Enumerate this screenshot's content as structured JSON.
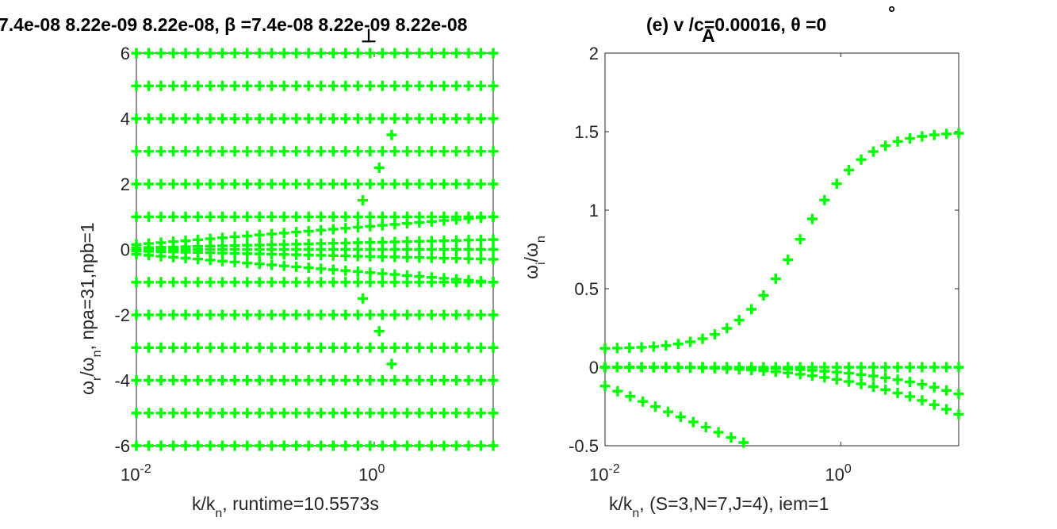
{
  "title": {
    "line": "7.4e-08   8.22e-09   8.22e-08, β  =7.4e-08   8.22e-09   8.22e-08",
    "beta_sub": "⊥",
    "overlay": "(e) v  /c=0.00016, θ =0",
    "v_sub": "A",
    "theta_sup": "°"
  },
  "chart_data": [
    {
      "type": "scatter",
      "xscale": "log",
      "xlim": [
        0.01,
        10
      ],
      "ylim": [
        -6,
        6
      ],
      "xticks": [
        {
          "v": 0.01,
          "base": "10",
          "exp": "-2"
        },
        {
          "v": 1,
          "base": "10",
          "exp": "0"
        }
      ],
      "yticks": [
        "-6",
        "-4",
        "-2",
        "0",
        "2",
        "4",
        "6"
      ],
      "xlabel": {
        "pre": "k/k",
        "sub": "n",
        "post": ", runtime=10.5573s"
      },
      "ylabel": {
        "w": "ω",
        "sub1": "r",
        "mid": "/ω",
        "sub2": "n",
        "post": ", npa=31,npb=1"
      },
      "color": "#00ff00",
      "series": [
        {
          "x_range": [
            0.01,
            10
          ],
          "count": 30,
          "y": 6
        },
        {
          "x_range": [
            0.01,
            10
          ],
          "count": 30,
          "y": 5
        },
        {
          "x_range": [
            0.01,
            10
          ],
          "count": 30,
          "y": 4
        },
        {
          "x_range": [
            0.01,
            10
          ],
          "count": 30,
          "y": 3
        },
        {
          "x_range": [
            0.01,
            10
          ],
          "count": 30,
          "y": 2
        },
        {
          "x_range": [
            0.01,
            10
          ],
          "count": 30,
          "y": 1
        },
        {
          "x_range": [
            0.01,
            10
          ],
          "count": 30,
          "y": 0
        },
        {
          "x_range": [
            0.01,
            10
          ],
          "count": 30,
          "y": -1
        },
        {
          "x_range": [
            0.01,
            10
          ],
          "count": 30,
          "y": -2
        },
        {
          "x_range": [
            0.01,
            10
          ],
          "count": 30,
          "y": -3
        },
        {
          "x_range": [
            0.01,
            10
          ],
          "count": 30,
          "y": -4
        },
        {
          "x_range": [
            0.01,
            10
          ],
          "count": 30,
          "y": -5
        },
        {
          "x_range": [
            0.01,
            10
          ],
          "count": 30,
          "y": -6
        },
        {
          "x_range": [
            0.01,
            10
          ],
          "count": 30,
          "y_start": 0.15,
          "y_end": 1.0
        },
        {
          "x_range": [
            0.01,
            10
          ],
          "count": 30,
          "y_start": -0.15,
          "y_end": -1.0
        },
        {
          "x_range": [
            0.01,
            10
          ],
          "count": 30,
          "y_start": 0.05,
          "y_end": 0.3
        },
        {
          "x_range": [
            0.01,
            10
          ],
          "count": 30,
          "y_start": -0.05,
          "y_end": -0.3
        },
        {
          "points": [
            [
              0.8,
              1.5
            ],
            [
              0.8,
              -1.5
            ],
            [
              1.1,
              2.5
            ],
            [
              1.1,
              -2.5
            ],
            [
              1.4,
              3.5
            ],
            [
              1.4,
              -3.5
            ]
          ]
        }
      ]
    },
    {
      "type": "scatter",
      "xscale": "log",
      "xlim": [
        0.01,
        10
      ],
      "ylim": [
        -0.5,
        2
      ],
      "xticks": [
        {
          "v": 0.01,
          "base": "10",
          "exp": "-2"
        },
        {
          "v": 1,
          "base": "10",
          "exp": "0"
        }
      ],
      "yticks": [
        "-0.5",
        "0",
        "0.5",
        "1",
        "1.5",
        "2"
      ],
      "xlabel": {
        "pre": "k/k",
        "sub": "n",
        "post": ", (S=3,N=7,J=4), iem=1"
      },
      "ylabel": {
        "w": "ω",
        "sub1": "i",
        "mid": "/ω",
        "sub2": "n",
        "post": ""
      },
      "color": "#00ff00",
      "series": [
        {
          "name_hidden": true,
          "x_range": [
            0.01,
            10
          ],
          "count": 30,
          "shape": "tanh",
          "y_start": 0.12,
          "y_end": 1.49
        },
        {
          "x_range": [
            0.01,
            10
          ],
          "count": 30,
          "y": 0
        },
        {
          "x_range": [
            0.01,
            10
          ],
          "count": 30,
          "shape": "drop",
          "y_start": 0,
          "y_end": -0.17
        },
        {
          "x_range": [
            0.01,
            10
          ],
          "count": 30,
          "shape": "drop2",
          "y_start": 0,
          "y_end": -0.3
        },
        {
          "x_range": [
            0.01,
            0.15
          ],
          "count": 12,
          "y_start": -0.12,
          "y_end": -0.48
        }
      ]
    }
  ]
}
